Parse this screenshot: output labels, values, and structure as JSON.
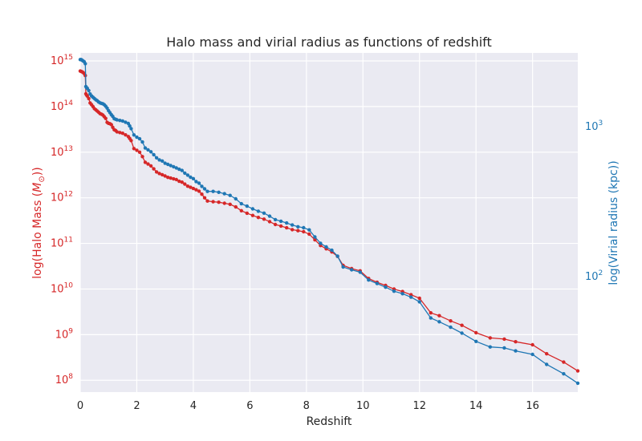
{
  "chart_data": {
    "type": "line",
    "title": "Halo mass and virial radius as functions of redshift",
    "xlabel": "Redshift",
    "ylabel_left": "log(Halo Mass ($M_{\\odot}$))",
    "ylabel_left_prefix": "log(Halo Mass (",
    "ylabel_left_symbol": "M",
    "ylabel_left_subscript": "⊙",
    "ylabel_left_suffix": "))",
    "ylabel_right": "log(Virial radius (kpc))",
    "xlim": [
      0,
      17.6
    ],
    "ylim_left": [
      55000000.0,
      1500000000000000.0
    ],
    "ylim_right": [
      17,
      3100
    ],
    "yscale": "log",
    "grid": true,
    "x_ticks": [
      0,
      2,
      4,
      6,
      8,
      10,
      12,
      14,
      16
    ],
    "x_tick_labels": [
      "0",
      "2",
      "4",
      "6",
      "8",
      "10",
      "12",
      "14",
      "16"
    ],
    "left_ticks": [
      {
        "base": "10",
        "exp": "8",
        "value": 100000000.0
      },
      {
        "base": "10",
        "exp": "9",
        "value": 1000000000.0
      },
      {
        "base": "10",
        "exp": "10",
        "value": 10000000000.0
      },
      {
        "base": "10",
        "exp": "11",
        "value": 100000000000.0
      },
      {
        "base": "10",
        "exp": "12",
        "value": 1000000000000.0
      },
      {
        "base": "10",
        "exp": "13",
        "value": 10000000000000.0
      },
      {
        "base": "10",
        "exp": "14",
        "value": 100000000000000.0
      },
      {
        "base": "10",
        "exp": "15",
        "value": 1000000000000000.0
      }
    ],
    "right_ticks": [
      {
        "base": "10",
        "exp": "2",
        "value": 100
      },
      {
        "base": "10",
        "exp": "3",
        "value": 1000
      }
    ],
    "colors": {
      "mass": "#d62728",
      "radius": "#1f77b4",
      "background": "#eaeaf2",
      "grid": "#ffffff"
    },
    "series": [
      {
        "role": "mass",
        "axis": "left",
        "x": [
          0,
          0.03,
          0.06,
          0.1,
          0.14,
          0.18,
          0.2,
          0.22,
          0.25,
          0.3,
          0.35,
          0.4,
          0.45,
          0.5,
          0.55,
          0.6,
          0.65,
          0.7,
          0.75,
          0.8,
          0.85,
          0.9,
          0.95,
          1.0,
          1.05,
          1.1,
          1.15,
          1.2,
          1.25,
          1.3,
          1.4,
          1.5,
          1.6,
          1.7,
          1.75,
          1.8,
          1.9,
          2.0,
          2.1,
          2.2,
          2.3,
          2.4,
          2.5,
          2.6,
          2.7,
          2.8,
          2.9,
          3.0,
          3.1,
          3.2,
          3.3,
          3.4,
          3.5,
          3.6,
          3.7,
          3.8,
          3.9,
          4.0,
          4.1,
          4.2,
          4.3,
          4.4,
          4.5,
          4.7,
          4.9,
          5.1,
          5.3,
          5.5,
          5.7,
          5.9,
          6.1,
          6.3,
          6.5,
          6.7,
          6.9,
          7.1,
          7.3,
          7.5,
          7.7,
          7.9,
          8.1,
          8.3,
          8.5,
          8.7,
          8.9,
          9.1,
          9.3,
          9.6,
          9.9,
          10.2,
          10.5,
          10.8,
          11.1,
          11.4,
          11.7,
          12.0,
          12.4,
          12.7,
          13.1,
          13.5,
          14.0,
          14.5,
          15.0,
          15.4,
          16.0,
          16.5,
          17.1,
          17.6
        ],
        "y": [
          600000000000000.0,
          590000000000000.0,
          580000000000000.0,
          560000000000000.0,
          530000000000000.0,
          480000000000000.0,
          190000000000000.0,
          180000000000000.0,
          170000000000000.0,
          150000000000000.0,
          120000000000000.0,
          110000000000000.0,
          100000000000000.0,
          90000000000000.0,
          85000000000000.0,
          80000000000000.0,
          75000000000000.0,
          70000000000000.0,
          68000000000000.0,
          65000000000000.0,
          60000000000000.0,
          55000000000000.0,
          45000000000000.0,
          43000000000000.0,
          42000000000000.0,
          40000000000000.0,
          35000000000000.0,
          31000000000000.0,
          30000000000000.0,
          28000000000000.0,
          27000000000000.0,
          26000000000000.0,
          24000000000000.0,
          22000000000000.0,
          20000000000000.0,
          18000000000000.0,
          12000000000000.0,
          11000000000000.0,
          10000000000000.0,
          8000000000000.0,
          6000000000000.0,
          5500000000000.0,
          5000000000000.0,
          4300000000000.0,
          3700000000000.0,
          3400000000000.0,
          3200000000000.0,
          3000000000000.0,
          2800000000000.0,
          2700000000000.0,
          2600000000000.0,
          2500000000000.0,
          2300000000000.0,
          2200000000000.0,
          2000000000000.0,
          1800000000000.0,
          1700000000000.0,
          1600000000000.0,
          1500000000000.0,
          1400000000000.0,
          1200000000000.0,
          1000000000000.0,
          850000000000.0,
          820000000000.0,
          800000000000.0,
          760000000000.0,
          720000000000.0,
          630000000000.0,
          520000000000.0,
          460000000000.0,
          410000000000.0,
          370000000000.0,
          340000000000.0,
          300000000000.0,
          260000000000.0,
          240000000000.0,
          220000000000.0,
          200000000000.0,
          190000000000.0,
          180000000000.0,
          160000000000.0,
          120000000000.0,
          90000000000.0,
          76000000000.0,
          65000000000.0,
          52000000000.0,
          33000000000.0,
          28000000000.0,
          25000000000.0,
          17000000000.0,
          14000000000.0,
          12000000000.0,
          10000000000.0,
          8800000000.0,
          7500000000.0,
          6300000000.0,
          3000000000.0,
          2600000000.0,
          2000000000.0,
          1600000000.0,
          1100000000.0,
          850000000.0,
          800000000.0,
          700000000.0,
          600000000.0,
          380000000.0,
          250000000.0,
          160000000.0
        ]
      },
      {
        "role": "radius",
        "axis": "right",
        "x": [
          0,
          0.03,
          0.06,
          0.1,
          0.14,
          0.18,
          0.2,
          0.22,
          0.25,
          0.3,
          0.35,
          0.4,
          0.45,
          0.5,
          0.55,
          0.6,
          0.65,
          0.7,
          0.75,
          0.8,
          0.85,
          0.9,
          0.95,
          1.0,
          1.05,
          1.1,
          1.15,
          1.2,
          1.25,
          1.3,
          1.4,
          1.5,
          1.6,
          1.7,
          1.75,
          1.8,
          1.9,
          2.0,
          2.1,
          2.2,
          2.3,
          2.4,
          2.5,
          2.6,
          2.7,
          2.8,
          2.9,
          3.0,
          3.1,
          3.2,
          3.3,
          3.4,
          3.5,
          3.6,
          3.7,
          3.8,
          3.9,
          4.0,
          4.1,
          4.2,
          4.3,
          4.4,
          4.5,
          4.7,
          4.9,
          5.1,
          5.3,
          5.5,
          5.7,
          5.9,
          6.1,
          6.3,
          6.5,
          6.7,
          6.9,
          7.1,
          7.3,
          7.5,
          7.7,
          7.9,
          8.1,
          8.3,
          8.5,
          8.7,
          8.9,
          9.1,
          9.3,
          9.6,
          9.9,
          10.2,
          10.5,
          10.8,
          11.1,
          11.4,
          11.7,
          12.0,
          12.4,
          12.7,
          13.1,
          13.5,
          14.0,
          14.5,
          15.0,
          15.4,
          16.0,
          16.5,
          17.1,
          17.6
        ],
        "y": [
          2800,
          2800,
          2780,
          2740,
          2710,
          2630,
          1850,
          1820,
          1800,
          1740,
          1650,
          1600,
          1570,
          1540,
          1510,
          1490,
          1460,
          1440,
          1430,
          1420,
          1400,
          1370,
          1330,
          1280,
          1240,
          1200,
          1170,
          1130,
          1120,
          1110,
          1100,
          1090,
          1070,
          1050,
          1010,
          970,
          880,
          850,
          830,
          790,
          720,
          700,
          680,
          650,
          620,
          600,
          590,
          570,
          560,
          550,
          540,
          530,
          520,
          510,
          490,
          475,
          460,
          450,
          430,
          420,
          400,
          385,
          370,
          370,
          365,
          357,
          348,
          330,
          306,
          295,
          283,
          273,
          265,
          253,
          240,
          234,
          228,
          221,
          215,
          212,
          205,
          184,
          167,
          158,
          150,
          137,
          116,
          111,
          107,
          95,
          90,
          85,
          80,
          77,
          73,
          68,
          53,
          50,
          46,
          42,
          37,
          34,
          33.5,
          32,
          30.3,
          26,
          22.5,
          19.5
        ]
      }
    ]
  }
}
